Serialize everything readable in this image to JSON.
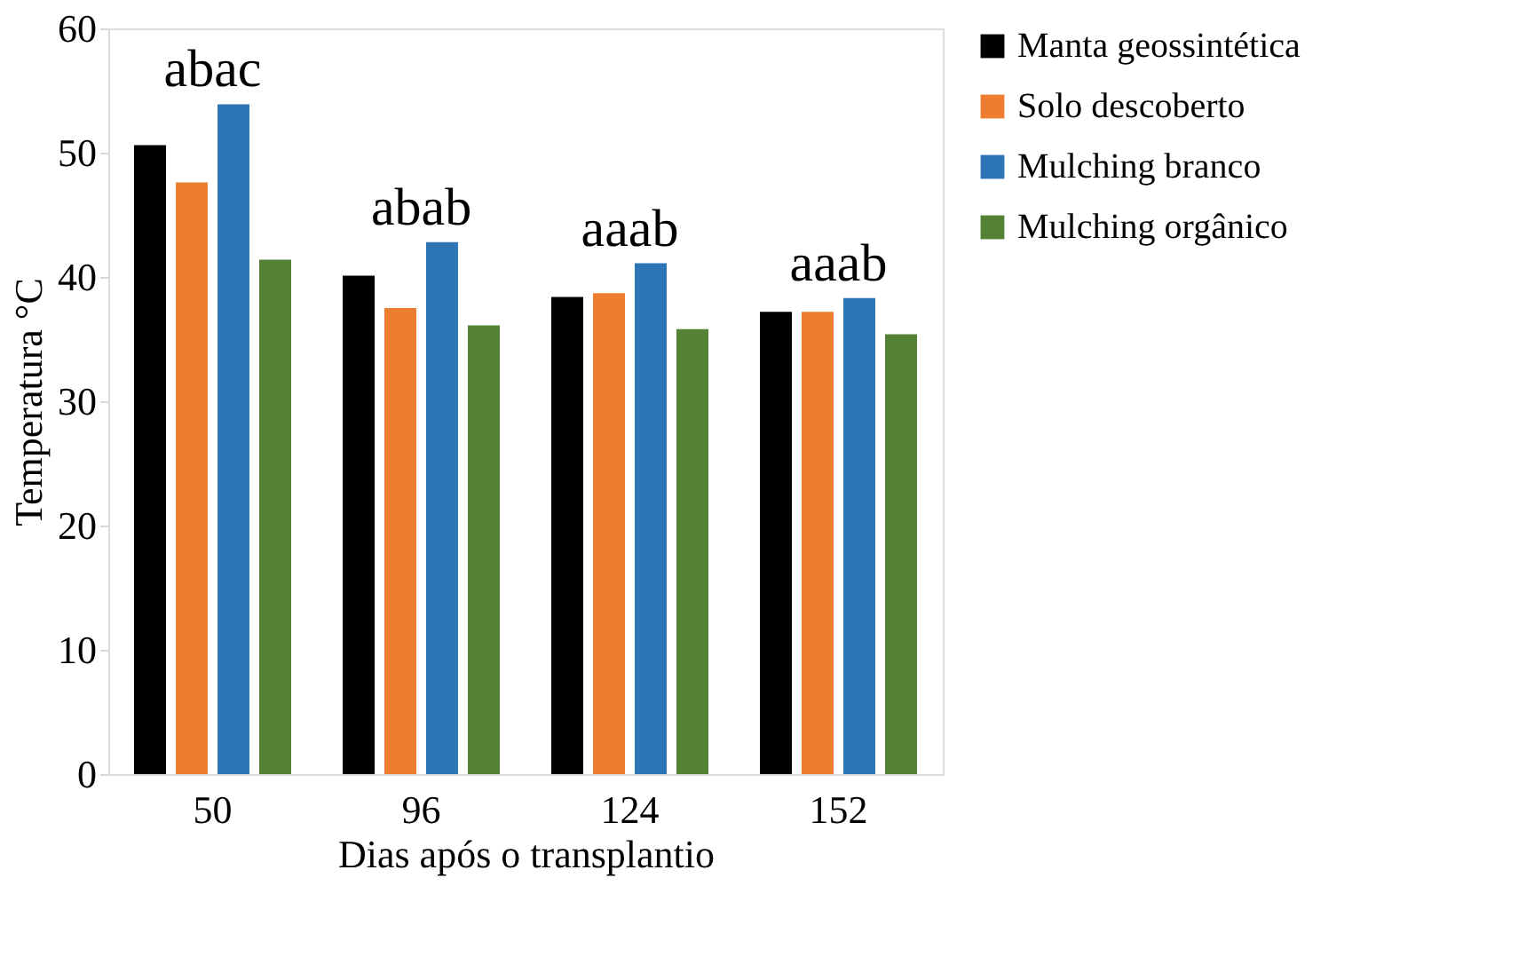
{
  "chart_data": {
    "type": "bar",
    "xlabel": "Dias após o transplantio",
    "ylabel": "Temperatura °C",
    "categories": [
      "50",
      "96",
      "124",
      "152"
    ],
    "series": [
      {
        "name": "Manta geossintética",
        "color": "#000000",
        "values": [
          50.6,
          40.1,
          38.4,
          37.2
        ]
      },
      {
        "name": "Solo descoberto",
        "color": "#ed7d31",
        "values": [
          47.6,
          37.5,
          38.7,
          37.2
        ]
      },
      {
        "name": "Mulching branco",
        "color": "#2e75b6",
        "values": [
          53.9,
          42.8,
          41.1,
          38.3
        ]
      },
      {
        "name": "Mulching orgânico",
        "color": "#548235",
        "values": [
          41.4,
          36.1,
          35.8,
          35.4
        ]
      }
    ],
    "ylim": [
      0,
      60
    ],
    "yticks": [
      0,
      10,
      20,
      30,
      40,
      50,
      60
    ],
    "grid": false,
    "legend": "right",
    "annotations": [
      "abac",
      "abab",
      "aaab",
      "aaab"
    ]
  }
}
